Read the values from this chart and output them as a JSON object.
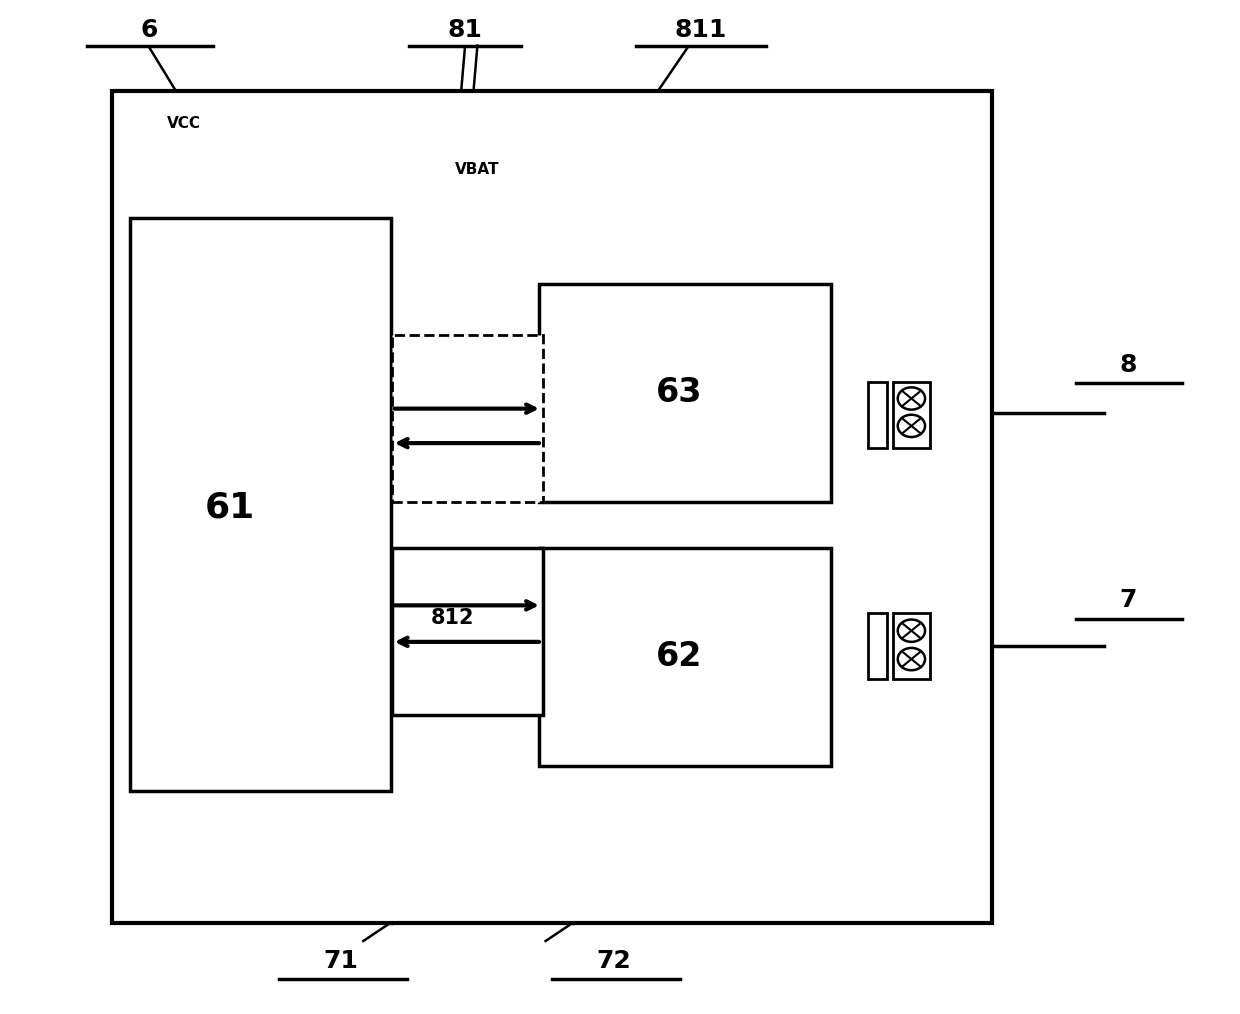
{
  "bg_color": "#ffffff",
  "line_color": "#000000",
  "fig_width": 12.4,
  "fig_height": 10.14,
  "dpi": 100
}
